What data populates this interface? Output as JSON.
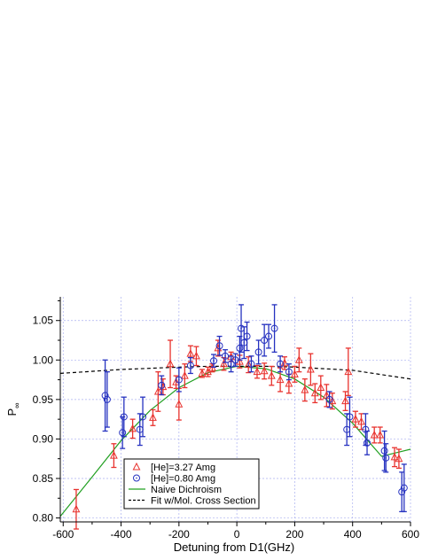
{
  "chart_data": {
    "type": "scatter",
    "xlabel": "Detuning from D1(GHz)",
    "ylabel": "P",
    "ylabel_sub": "∞",
    "xlim": [
      -610,
      600
    ],
    "ylim": [
      0.795,
      1.08
    ],
    "grid": true,
    "legend_position": "bottom-left",
    "x_ticks": [
      -600,
      -400,
      -200,
      0,
      200,
      400,
      600
    ],
    "y_ticks": [
      0.8,
      0.85,
      0.9,
      0.95,
      1.0,
      1.05
    ],
    "x_tick_labels": [
      "-600",
      "-400",
      "-200",
      "0",
      "200",
      "400",
      "600"
    ],
    "y_tick_labels": [
      "0.80",
      "0.85",
      "0.90",
      "0.95",
      "1.00",
      "1.05"
    ],
    "series": [
      {
        "name": "[He]=3.27 Amg",
        "kind": "points",
        "marker": "triangle",
        "color": "#e8322e",
        "points": [
          {
            "x": -555,
            "y": 0.811,
            "err": 0.025
          },
          {
            "x": -425,
            "y": 0.879,
            "err": 0.015
          },
          {
            "x": -360,
            "y": 0.913,
            "err": 0.012
          },
          {
            "x": -290,
            "y": 0.927,
            "err": 0.01
          },
          {
            "x": -272,
            "y": 0.96,
            "err": 0.025
          },
          {
            "x": -255,
            "y": 0.966,
            "err": 0.01
          },
          {
            "x": -230,
            "y": 0.995,
            "err": 0.03
          },
          {
            "x": -210,
            "y": 0.972,
            "err": 0.008
          },
          {
            "x": -200,
            "y": 0.944,
            "err": 0.02
          },
          {
            "x": -180,
            "y": 0.98,
            "err": 0.015
          },
          {
            "x": -160,
            "y": 1.008,
            "err": 0.01
          },
          {
            "x": -140,
            "y": 1.005,
            "err": 0.012
          },
          {
            "x": -120,
            "y": 0.983,
            "err": 0.005
          },
          {
            "x": -100,
            "y": 0.985,
            "err": 0.006
          },
          {
            "x": -85,
            "y": 0.99,
            "err": 0.005
          },
          {
            "x": -65,
            "y": 1.015,
            "err": 0.01
          },
          {
            "x": -45,
            "y": 0.995,
            "err": 0.008
          },
          {
            "x": -20,
            "y": 1.004,
            "err": 0.006
          },
          {
            "x": 10,
            "y": 0.998,
            "err": 0.008
          },
          {
            "x": 40,
            "y": 0.994,
            "err": 0.01
          },
          {
            "x": 70,
            "y": 0.985,
            "err": 0.008
          },
          {
            "x": 95,
            "y": 0.986,
            "err": 0.01
          },
          {
            "x": 120,
            "y": 0.98,
            "err": 0.012
          },
          {
            "x": 150,
            "y": 0.975,
            "err": 0.015
          },
          {
            "x": 165,
            "y": 0.996,
            "err": 0.008
          },
          {
            "x": 180,
            "y": 0.97,
            "err": 0.012
          },
          {
            "x": 200,
            "y": 0.982,
            "err": 0.01
          },
          {
            "x": 215,
            "y": 1.0,
            "err": 0.015
          },
          {
            "x": 235,
            "y": 0.962,
            "err": 0.014
          },
          {
            "x": 255,
            "y": 0.988,
            "err": 0.02
          },
          {
            "x": 270,
            "y": 0.958,
            "err": 0.012
          },
          {
            "x": 290,
            "y": 0.965,
            "err": 0.015
          },
          {
            "x": 310,
            "y": 0.955,
            "err": 0.014
          },
          {
            "x": 330,
            "y": 0.948,
            "err": 0.01
          },
          {
            "x": 375,
            "y": 0.948,
            "err": 0.012
          },
          {
            "x": 385,
            "y": 0.985,
            "err": 0.03
          },
          {
            "x": 410,
            "y": 0.925,
            "err": 0.01
          },
          {
            "x": 430,
            "y": 0.922,
            "err": 0.01
          },
          {
            "x": 475,
            "y": 0.905,
            "err": 0.01
          },
          {
            "x": 495,
            "y": 0.905,
            "err": 0.01
          },
          {
            "x": 545,
            "y": 0.877,
            "err": 0.012
          },
          {
            "x": 560,
            "y": 0.875,
            "err": 0.012
          }
        ]
      },
      {
        "name": "[He]=0.80 Amg",
        "kind": "points",
        "marker": "circle",
        "color": "#2632c0",
        "points": [
          {
            "x": -455,
            "y": 0.955,
            "err": 0.045
          },
          {
            "x": -448,
            "y": 0.95,
            "err": 0.035
          },
          {
            "x": -395,
            "y": 0.908,
            "err": 0.02
          },
          {
            "x": -390,
            "y": 0.928,
            "err": 0.025
          },
          {
            "x": -335,
            "y": 0.912,
            "err": 0.02
          },
          {
            "x": -325,
            "y": 0.928,
            "err": 0.025
          },
          {
            "x": -260,
            "y": 0.968,
            "err": 0.012
          },
          {
            "x": -200,
            "y": 0.975,
            "err": 0.015
          },
          {
            "x": -160,
            "y": 0.993,
            "err": 0.01
          },
          {
            "x": -80,
            "y": 0.999,
            "err": 0.008
          },
          {
            "x": -60,
            "y": 1.018,
            "err": 0.012
          },
          {
            "x": -40,
            "y": 1.005,
            "err": 0.008
          },
          {
            "x": -20,
            "y": 0.995,
            "err": 0.01
          },
          {
            "x": -5,
            "y": 1.0,
            "err": 0.008
          },
          {
            "x": 10,
            "y": 1.015,
            "err": 0.015
          },
          {
            "x": 15,
            "y": 1.04,
            "err": 0.03
          },
          {
            "x": 25,
            "y": 1.022,
            "err": 0.02
          },
          {
            "x": 35,
            "y": 1.03,
            "err": 0.018
          },
          {
            "x": 50,
            "y": 0.995,
            "err": 0.01
          },
          {
            "x": 75,
            "y": 1.01,
            "err": 0.015
          },
          {
            "x": 95,
            "y": 1.025,
            "err": 0.02
          },
          {
            "x": 110,
            "y": 1.03,
            "err": 0.015
          },
          {
            "x": 130,
            "y": 1.04,
            "err": 0.03
          },
          {
            "x": 150,
            "y": 0.995,
            "err": 0.01
          },
          {
            "x": 180,
            "y": 0.985,
            "err": 0.01
          },
          {
            "x": 320,
            "y": 0.95,
            "err": 0.01
          },
          {
            "x": 380,
            "y": 0.912,
            "err": 0.02
          },
          {
            "x": 390,
            "y": 0.928,
            "err": 0.025
          },
          {
            "x": 445,
            "y": 0.912,
            "err": 0.02
          },
          {
            "x": 450,
            "y": 0.895,
            "err": 0.015
          },
          {
            "x": 510,
            "y": 0.885,
            "err": 0.025
          },
          {
            "x": 515,
            "y": 0.876,
            "err": 0.018
          },
          {
            "x": 570,
            "y": 0.833,
            "err": 0.025
          },
          {
            "x": 578,
            "y": 0.838,
            "err": 0.03
          }
        ]
      },
      {
        "name": "Naive Dichroism",
        "kind": "line",
        "style": "solid",
        "color": "#22a022",
        "x": [
          -610,
          -500,
          -400,
          -300,
          -200,
          -100,
          0,
          100,
          200,
          300,
          400,
          500,
          600
        ],
        "y": [
          0.802,
          0.852,
          0.898,
          0.936,
          0.965,
          0.984,
          0.992,
          0.989,
          0.976,
          0.953,
          0.92,
          0.878,
          0.887
        ]
      },
      {
        "name": "Fit w/Mol. Cross Section",
        "kind": "line",
        "style": "dashed",
        "color": "#000000",
        "x": [
          -610,
          -400,
          -200,
          -100,
          0,
          100,
          200,
          400,
          600
        ],
        "y": [
          0.983,
          0.988,
          0.991,
          0.992,
          0.992,
          0.992,
          0.991,
          0.987,
          0.976
        ]
      }
    ]
  }
}
